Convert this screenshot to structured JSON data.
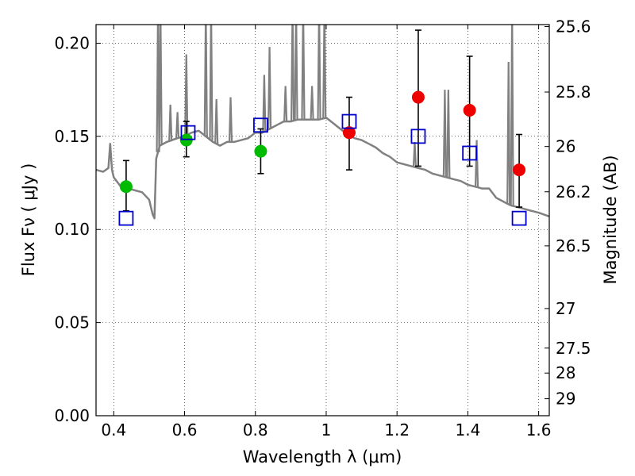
{
  "chart_data": {
    "type": "scatter",
    "title": "",
    "xlabel": "Wavelength  λ (μm)",
    "ylabel": "Flux  Fν  ( μJy )",
    "ylabel_right": "Magnitude (AB)",
    "xlim": [
      0.35,
      1.63
    ],
    "ylim": [
      0.0,
      0.21
    ],
    "grid": true,
    "legend": "none",
    "x_ticks": [
      0.4,
      0.6,
      0.8,
      1.0,
      1.2,
      1.4,
      1.6
    ],
    "x_tick_labels": [
      "0.4",
      "0.6",
      "0.8",
      "1",
      "1.2",
      "1.4",
      "1.6"
    ],
    "y_ticks": [
      0.0,
      0.05,
      0.1,
      0.15,
      0.2
    ],
    "y_tick_labels": [
      "0.00",
      "0.05",
      "0.10",
      "0.15",
      "0.20"
    ],
    "right_ticks": [
      {
        "label": "25.6",
        "mag": 25.6
      },
      {
        "label": "25.8",
        "mag": 25.8
      },
      {
        "label": "26",
        "mag": 26.0
      },
      {
        "label": "26.2",
        "mag": 26.2
      },
      {
        "label": "26.5",
        "mag": 26.5
      },
      {
        "label": "27",
        "mag": 27.0
      },
      {
        "label": "27.5",
        "mag": 27.5
      },
      {
        "label": "28",
        "mag": 28.0
      },
      {
        "label": "29",
        "mag": 29.0
      }
    ],
    "colors": {
      "model": "#808080",
      "green": "#00bb00",
      "red": "#ee0000",
      "square": "#0000cc",
      "errorbar": "#000000"
    },
    "series": [
      {
        "kind": "line",
        "x": [
          0.35,
          0.37,
          0.385,
          0.39,
          0.395,
          0.4,
          0.42,
          0.44,
          0.46,
          0.48,
          0.5,
          0.51,
          0.515,
          0.52,
          0.53,
          0.55,
          0.58,
          0.6,
          0.62,
          0.64,
          0.66,
          0.68,
          0.7,
          0.72,
          0.74,
          0.76,
          0.78,
          0.8,
          0.82,
          0.84,
          0.86,
          0.88,
          0.9,
          0.92,
          0.94,
          0.96,
          0.98,
          1.0,
          1.02,
          1.04,
          1.06,
          1.08,
          1.1,
          1.12,
          1.14,
          1.16,
          1.18,
          1.2,
          1.22,
          1.24,
          1.26,
          1.28,
          1.3,
          1.32,
          1.34,
          1.36,
          1.38,
          1.4,
          1.42,
          1.44,
          1.46,
          1.48,
          1.5,
          1.52,
          1.54,
          1.56,
          1.58,
          1.6,
          1.63
        ],
        "y": [
          0.132,
          0.131,
          0.133,
          0.146,
          0.132,
          0.128,
          0.123,
          0.122,
          0.121,
          0.12,
          0.116,
          0.108,
          0.106,
          0.138,
          0.145,
          0.147,
          0.149,
          0.15,
          0.152,
          0.153,
          0.15,
          0.147,
          0.145,
          0.147,
          0.147,
          0.148,
          0.149,
          0.152,
          0.152,
          0.154,
          0.156,
          0.158,
          0.158,
          0.159,
          0.159,
          0.159,
          0.159,
          0.16,
          0.157,
          0.154,
          0.151,
          0.149,
          0.148,
          0.146,
          0.144,
          0.141,
          0.139,
          0.136,
          0.135,
          0.134,
          0.133,
          0.132,
          0.13,
          0.129,
          0.128,
          0.127,
          0.126,
          0.124,
          0.123,
          0.122,
          0.122,
          0.117,
          0.115,
          0.113,
          0.112,
          0.111,
          0.11,
          0.109,
          0.107
        ]
      },
      {
        "kind": "emission_lines",
        "lines": [
          {
            "x": 0.525,
            "peak": 0.22
          },
          {
            "x": 0.532,
            "peak": 0.22
          },
          {
            "x": 0.56,
            "peak": 0.167
          },
          {
            "x": 0.58,
            "peak": 0.163
          },
          {
            "x": 0.605,
            "peak": 0.194
          },
          {
            "x": 0.66,
            "peak": 0.22
          },
          {
            "x": 0.675,
            "peak": 0.22
          },
          {
            "x": 0.69,
            "peak": 0.17
          },
          {
            "x": 0.73,
            "peak": 0.171
          },
          {
            "x": 0.825,
            "peak": 0.183
          },
          {
            "x": 0.84,
            "peak": 0.198
          },
          {
            "x": 0.885,
            "peak": 0.177
          },
          {
            "x": 0.905,
            "peak": 0.22
          },
          {
            "x": 0.915,
            "peak": 0.22
          },
          {
            "x": 0.935,
            "peak": 0.22
          },
          {
            "x": 0.96,
            "peak": 0.177
          },
          {
            "x": 0.98,
            "peak": 0.22
          },
          {
            "x": 0.995,
            "peak": 0.22
          },
          {
            "x": 1.25,
            "peak": 0.147
          },
          {
            "x": 1.335,
            "peak": 0.175
          },
          {
            "x": 1.345,
            "peak": 0.175
          },
          {
            "x": 1.425,
            "peak": 0.148
          },
          {
            "x": 1.515,
            "peak": 0.19
          },
          {
            "x": 1.525,
            "peak": 0.22
          }
        ]
      },
      {
        "kind": "circles",
        "points": [
          {
            "x": 0.435,
            "y": 0.123,
            "err": [
              0.11,
              0.137
            ],
            "color": "green"
          },
          {
            "x": 0.605,
            "y": 0.148,
            "err": [
              0.139,
              0.158
            ],
            "color": "green"
          },
          {
            "x": 0.815,
            "y": 0.142,
            "err": [
              0.13,
              0.154
            ],
            "color": "green"
          },
          {
            "x": 1.065,
            "y": 0.152,
            "err": [
              0.132,
              0.171
            ],
            "color": "red"
          },
          {
            "x": 1.26,
            "y": 0.171,
            "err": [
              0.134,
              0.207
            ],
            "color": "red"
          },
          {
            "x": 1.405,
            "y": 0.164,
            "err": [
              0.134,
              0.193
            ],
            "color": "red"
          },
          {
            "x": 1.545,
            "y": 0.132,
            "err": [
              0.112,
              0.151
            ],
            "color": "red"
          }
        ]
      },
      {
        "kind": "squares",
        "points": [
          {
            "x": 0.435,
            "y": 0.106
          },
          {
            "x": 0.61,
            "y": 0.152
          },
          {
            "x": 0.815,
            "y": 0.156
          },
          {
            "x": 1.065,
            "y": 0.158
          },
          {
            "x": 1.26,
            "y": 0.15
          },
          {
            "x": 1.405,
            "y": 0.141
          },
          {
            "x": 1.545,
            "y": 0.106
          }
        ]
      }
    ]
  }
}
